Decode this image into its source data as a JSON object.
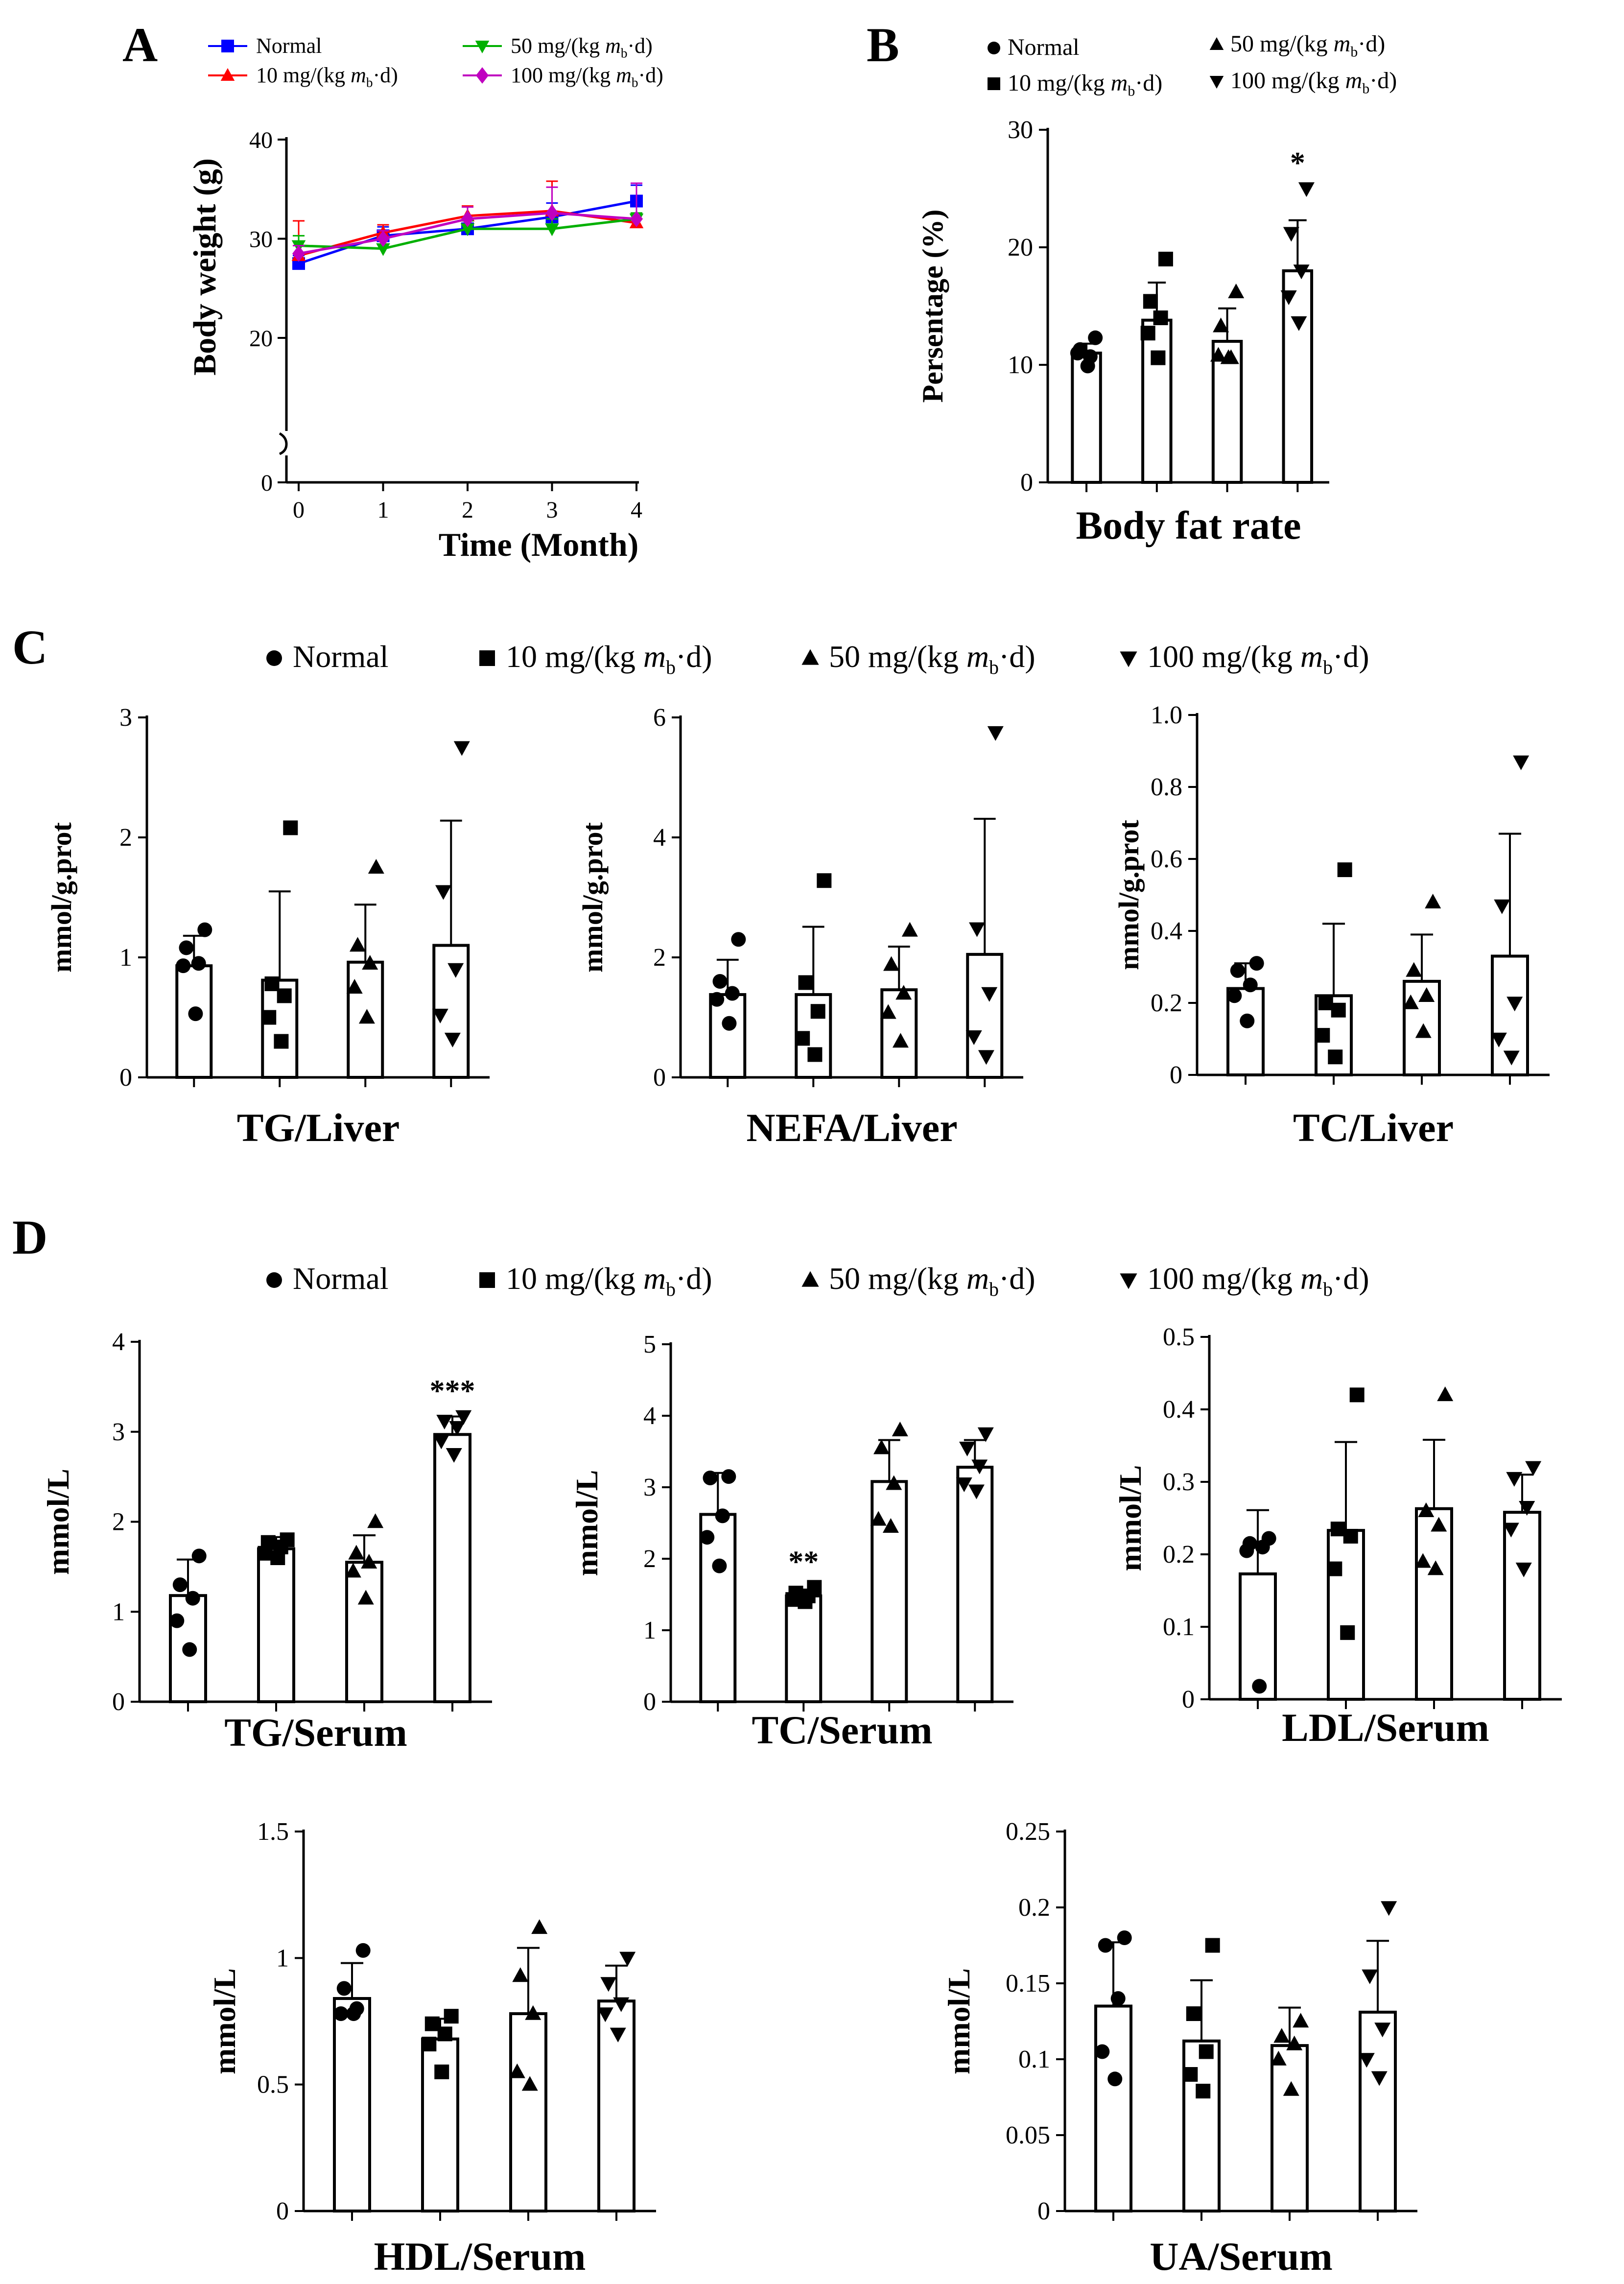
{
  "panels": [
    {
      "letter": "A"
    },
    {
      "letter": "B"
    },
    {
      "letter": "C"
    },
    {
      "letter": "D"
    }
  ],
  "chart_data": [
    {
      "id": "A",
      "type": "line",
      "title": "",
      "xlabel": "Time (Month)",
      "ylabel": "Body weight (g)",
      "x": [
        0,
        1,
        2,
        3,
        4
      ],
      "xticks": [
        "0",
        "1",
        "2",
        "3",
        "4"
      ],
      "yticks": [
        "0",
        "20",
        "30",
        "40"
      ],
      "ylim": [
        0,
        40
      ],
      "axis_break": true,
      "series": [
        {
          "name": "Normal",
          "dose": "",
          "marker": "square",
          "color": "#0000FF",
          "values": [
            27.5,
            30.3,
            31.0,
            32.2,
            33.8
          ],
          "err": [
            0.8,
            0.9,
            1.0,
            1.4,
            1.6
          ]
        },
        {
          "name": "10 mg/(kg ",
          "dose": "m",
          "sub": "b",
          "tail": "·d)",
          "marker": "triangle",
          "color": "#FF0000",
          "values": [
            28.3,
            30.6,
            32.3,
            32.8,
            31.6
          ],
          "err": [
            3.5,
            0.8,
            1.0,
            3.0,
            0.4
          ]
        },
        {
          "name": "50 mg/(kg ",
          "dose": "m",
          "sub": "b",
          "tail": "·d)",
          "marker": "triangle-down",
          "color": "#00B000",
          "values": [
            29.3,
            29.0,
            31.0,
            31.0,
            32.0
          ],
          "err": [
            1.0,
            1.0,
            0.8,
            1.0,
            0.6
          ]
        },
        {
          "name": "100 mg/(kg ",
          "dose": "m",
          "sub": "b",
          "tail": "·d)",
          "marker": "diamond",
          "color": "#C000C0",
          "values": [
            28.5,
            30.0,
            32.0,
            32.6,
            32.0
          ],
          "err": [
            0.8,
            0.8,
            1.2,
            2.6,
            3.6
          ]
        }
      ]
    },
    {
      "id": "B",
      "type": "bar",
      "title": "Body fat rate",
      "xlabel": "Body fat rate",
      "ylabel": "Persentage (%)",
      "categories": [
        "Normal",
        "10 mg/(kg mb·d)",
        "50 mg/(kg mb·d)",
        "100 mg/(kg mb·d)"
      ],
      "legend": [
        {
          "label": "Normal",
          "marker": "circle"
        },
        {
          "label": "10 mg/(kg ",
          "m": "m",
          "sub": "b",
          "tail": "·d)",
          "marker": "square"
        },
        {
          "label": "50  mg/(kg ",
          "m": "m",
          "sub": "b",
          "tail": "·d)",
          "marker": "triangle"
        },
        {
          "label": "100   mg/(kg ",
          "m": "m",
          "sub": "b",
          "tail": "·d)",
          "marker": "triangle-down"
        }
      ],
      "yticks": [
        "0",
        "10",
        "20",
        "30"
      ],
      "ylim": [
        0,
        30
      ],
      "values": [
        11.0,
        13.8,
        12.0,
        18.0
      ],
      "err": [
        0.8,
        3.2,
        2.8,
        4.3
      ],
      "points": [
        [
          12.3,
          11.3,
          10.7,
          11.0,
          9.9
        ],
        [
          19.0,
          15.4,
          14.0,
          12.7,
          10.6
        ],
        [
          16.2,
          13.3,
          10.6,
          10.8,
          10.6
        ],
        [
          25.0,
          21.2,
          18.0,
          15.8,
          13.6
        ]
      ],
      "significance": [
        "",
        "",
        "",
        "*"
      ]
    },
    {
      "id": "C1",
      "type": "bar",
      "title": "TG/Liver",
      "xlabel": "TG/Liver",
      "ylabel": "mmol/g.prot",
      "categories": [
        "Normal",
        "10 mg/(kg mb·d)",
        "50 mg/(kg mb·d)",
        "100 mg/(kg mb·d)"
      ],
      "yticks": [
        "0",
        "1",
        "2",
        "3"
      ],
      "ylim": [
        0,
        3
      ],
      "values": [
        0.93,
        0.81,
        0.96,
        1.1
      ],
      "err": [
        0.25,
        0.74,
        0.48,
        1.04
      ],
      "points": [
        [
          1.23,
          1.08,
          0.95,
          0.93,
          0.53
        ],
        [
          2.08,
          0.78,
          0.68,
          0.5,
          0.3
        ],
        [
          1.75,
          1.1,
          0.95,
          0.75,
          0.5
        ],
        [
          2.75,
          1.55,
          0.9,
          0.52,
          0.32
        ]
      ],
      "significance": [
        "",
        "",
        "",
        ""
      ]
    },
    {
      "id": "C2",
      "type": "bar",
      "title": "NEFA/Liver",
      "xlabel": "NEFA/Liver",
      "ylabel": "mmol/g.prot",
      "categories": [
        "Normal",
        "10 mg/(kg mb·d)",
        "50 mg/(kg mb·d)",
        "100 mg/(kg mb·d)"
      ],
      "yticks": [
        "0",
        "2",
        "4",
        "6"
      ],
      "ylim": [
        0,
        6
      ],
      "values": [
        1.38,
        1.38,
        1.46,
        2.05
      ],
      "err": [
        0.58,
        1.13,
        0.72,
        2.26
      ],
      "points": [
        [
          2.3,
          1.6,
          1.4,
          1.3,
          0.9
        ],
        [
          3.28,
          1.58,
          1.1,
          0.65,
          0.38
        ],
        [
          2.45,
          1.88,
          1.4,
          1.08,
          0.6
        ],
        [
          5.75,
          2.48,
          1.4,
          0.68,
          0.35
        ]
      ],
      "significance": [
        "",
        "",
        "",
        ""
      ]
    },
    {
      "id": "C3",
      "type": "bar",
      "title": "TC/Liver",
      "xlabel": "TC/Liver",
      "ylabel": "mmol/g.prot",
      "categories": [
        "Normal",
        "10 mg/(kg mb·d)",
        "50 mg/(kg mb·d)",
        "100 mg/(kg mb·d)"
      ],
      "yticks": [
        "0",
        "0.2",
        "0.4",
        "0.6",
        "0.8",
        "1.0"
      ],
      "ylim": [
        0,
        1.0
      ],
      "values": [
        0.24,
        0.22,
        0.26,
        0.33
      ],
      "err": [
        0.07,
        0.2,
        0.13,
        0.34
      ],
      "points": [
        [
          0.31,
          0.29,
          0.25,
          0.22,
          0.15
        ],
        [
          0.57,
          0.2,
          0.18,
          0.11,
          0.05
        ],
        [
          0.48,
          0.29,
          0.22,
          0.2,
          0.12
        ],
        [
          0.87,
          0.47,
          0.2,
          0.1,
          0.05
        ]
      ],
      "significance": [
        "",
        "",
        "",
        ""
      ]
    },
    {
      "id": "D1",
      "type": "bar",
      "title": "TG/Serum",
      "xlabel": "TG/Serum",
      "ylabel": "mmol/L",
      "categories": [
        "Normal",
        "10 mg/(kg mb·d)",
        "50 mg/(kg mb·d)",
        "100 mg/(kg mb·d)"
      ],
      "legend": [
        {
          "label": "Normal",
          "marker": "circle"
        },
        {
          "label": "10 mg/(kg ",
          "m": "m",
          "sub": "b",
          "tail": "·d)",
          "marker": "square"
        },
        {
          "label": "50 mg/(kg ",
          "m": "m",
          "sub": "b",
          "tail": "·d)",
          "marker": "triangle"
        },
        {
          "label": "100 mg/(kg ",
          "m": "m",
          "sub": "b",
          "tail": "·d)",
          "marker": "triangle-down"
        }
      ],
      "yticks": [
        "0",
        "1",
        "2",
        "3",
        "4"
      ],
      "ylim": [
        0,
        4
      ],
      "values": [
        1.18,
        1.7,
        1.55,
        2.97
      ],
      "err": [
        0.4,
        0.13,
        0.3,
        0.2
      ],
      "points": [
        [
          1.62,
          1.3,
          1.15,
          0.9,
          0.58
        ],
        [
          1.8,
          1.77,
          1.72,
          1.65,
          1.6
        ],
        [
          2.0,
          1.65,
          1.55,
          1.45,
          1.15
        ],
        [
          3.17,
          3.12,
          3.05,
          2.9,
          2.75
        ]
      ],
      "significance": [
        "",
        "",
        "",
        "***"
      ]
    },
    {
      "id": "D2",
      "type": "bar",
      "title": "TC/Serum",
      "xlabel": "TC/Serum",
      "ylabel": "mmol/L",
      "categories": [
        "Normal",
        "10 mg/(kg mb·d)",
        "50 mg/(kg mb·d)",
        "100 mg/(kg mb·d)"
      ],
      "yticks": [
        "0",
        "1",
        "2",
        "3",
        "4",
        "5"
      ],
      "ylim": [
        0,
        5
      ],
      "values": [
        2.62,
        1.48,
        3.08,
        3.28
      ],
      "err": [
        0.58,
        0.08,
        0.58,
        0.38
      ],
      "points": [
        [
          3.15,
          3.13,
          2.6,
          2.3,
          1.9
        ],
        [
          1.6,
          1.52,
          1.48,
          1.43,
          1.4
        ],
        [
          3.8,
          3.55,
          3.05,
          2.55,
          2.45
        ],
        [
          3.75,
          3.55,
          3.3,
          3.05,
          2.95
        ]
      ],
      "significance": [
        "",
        "**",
        "",
        ""
      ]
    },
    {
      "id": "D3",
      "type": "bar",
      "title": "LDL/Serum",
      "xlabel": "LDL/Serum",
      "ylabel": "mmol/L",
      "categories": [
        "Normal",
        "10 mg/(kg mb·d)",
        "50 mg/(kg mb·d)",
        "100 mg/(kg mb·d)"
      ],
      "yticks": [
        "0",
        "0.1",
        "0.2",
        "0.3",
        "0.4",
        "0.5"
      ],
      "ylim": [
        0,
        0.5
      ],
      "values": [
        0.173,
        0.233,
        0.263,
        0.258
      ],
      "err": [
        0.088,
        0.122,
        0.095,
        0.052
      ],
      "points": [
        [
          0.222,
          0.215,
          0.21,
          0.205,
          0.018
        ],
        [
          0.42,
          0.235,
          0.225,
          0.18,
          0.092
        ],
        [
          0.42,
          0.26,
          0.24,
          0.19,
          0.18
        ],
        [
          0.32,
          0.305,
          0.265,
          0.235,
          0.18
        ]
      ],
      "significance": [
        "",
        "",
        "",
        ""
      ]
    },
    {
      "id": "D4",
      "type": "bar",
      "title": "HDL/Serum",
      "xlabel": "HDL/Serum",
      "ylabel": "mmol/L",
      "categories": [
        "Normal",
        "10 mg/(kg mb·d)",
        "50 mg/(kg mb·d)",
        "100 mg/(kg mb·d)"
      ],
      "yticks": [
        "0",
        "0.5",
        "1",
        "1.5"
      ],
      "ylim": [
        0,
        1.5
      ],
      "values": [
        0.84,
        0.68,
        0.78,
        0.83
      ],
      "err": [
        0.14,
        0.08,
        0.26,
        0.14
      ],
      "points": [
        [
          1.03,
          0.88,
          0.8,
          0.78,
          0.78
        ],
        [
          0.77,
          0.74,
          0.7,
          0.66,
          0.55
        ],
        [
          1.12,
          0.93,
          0.78,
          0.55,
          0.5
        ],
        [
          1.0,
          0.9,
          0.82,
          0.78,
          0.7
        ]
      ],
      "significance": [
        "",
        "",
        "",
        ""
      ]
    },
    {
      "id": "D5",
      "type": "bar",
      "title": "UA/Serum",
      "xlabel": "UA/Serum",
      "ylabel": "mmol/L",
      "categories": [
        "Normal",
        "10 mg/(kg mb·d)",
        "50 mg/(kg mb·d)",
        "100 mg/(kg mb·d)"
      ],
      "yticks": [
        "0",
        "0.05",
        "0.1",
        "0.15",
        "0.2",
        "0.25"
      ],
      "ylim": [
        0,
        0.25
      ],
      "values": [
        0.135,
        0.112,
        0.109,
        0.131
      ],
      "err": [
        0.042,
        0.04,
        0.025,
        0.047
      ],
      "points": [
        [
          0.18,
          0.175,
          0.14,
          0.105,
          0.087
        ],
        [
          0.175,
          0.13,
          0.105,
          0.09,
          0.079
        ],
        [
          0.125,
          0.115,
          0.11,
          0.1,
          0.08
        ],
        [
          0.2,
          0.155,
          0.12,
          0.1,
          0.088
        ]
      ],
      "significance": [
        "",
        "",
        "",
        ""
      ]
    }
  ]
}
